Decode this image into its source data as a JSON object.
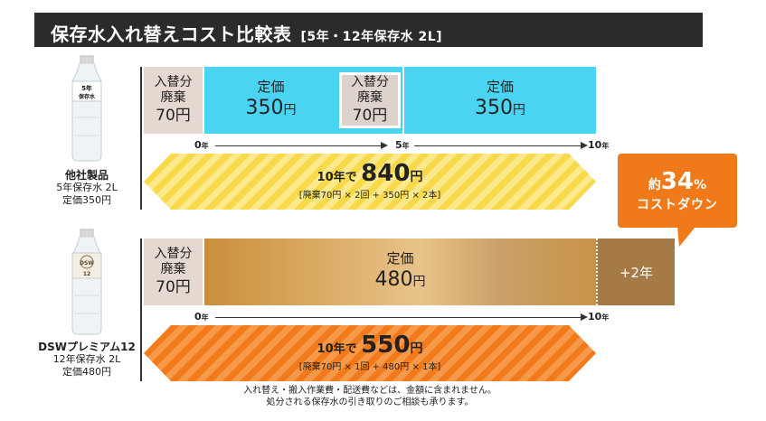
{
  "title": {
    "main": "保存水入れ替えコスト比較表",
    "sub": "[5年・12年保存水 2L]"
  },
  "bottle_labels": {
    "other": "5年 保存水",
    "dsw": "DSW 12"
  },
  "product_other": {
    "name": "他社製品",
    "desc": "5年保存水 2L",
    "price": "定価350円"
  },
  "product_dsw": {
    "name": "DSWプレミアム12",
    "desc": "12年保存水 2L",
    "price": "定価480円"
  },
  "row_other": {
    "dispose1_small": "入替分",
    "dispose1_small2": "廃棄",
    "dispose1_value": "70円",
    "price1_label": "定価",
    "price1_value": "350",
    "price1_unit": "円",
    "dispose2_small": "入替分",
    "dispose2_small2": "廃棄",
    "dispose2_value": "70円",
    "price2_label": "定価",
    "price2_value": "350",
    "price2_unit": "円"
  },
  "timeline_other": {
    "t0": "0",
    "t5": "5",
    "t10": "10",
    "unit": "年"
  },
  "banner_other": {
    "prefix": "10年で",
    "amount": "840",
    "unit": "円",
    "detail": "[廃棄70円 × 2回 + 350円 × 2本]"
  },
  "row_dsw": {
    "dispose_small": "入替分",
    "dispose_small2": "廃棄",
    "dispose_value": "70円",
    "price_label": "定価",
    "price_value": "480",
    "price_unit": "円",
    "extra": "+2年"
  },
  "timeline_dsw": {
    "t0": "0",
    "t10": "10",
    "unit": "年"
  },
  "banner_dsw": {
    "prefix": "10年で",
    "amount": "550",
    "unit": "円",
    "detail": "[廃棄70円 × 1回 + 480円 × 1本]"
  },
  "badge": {
    "prefix": "約",
    "percent": "34",
    "pct_sign": "%",
    "label": "コストダウン"
  },
  "notes": {
    "line1": "入れ替え・搬入作業費・配送費などは、金額に含まれません。",
    "line2": "処分される保存水の引き取りのご相談も承ります。"
  },
  "colors": {
    "title_bg": "#2b2b2b",
    "price_blue": "#4bd4f2",
    "dispose_beige": "#e4d8d1",
    "stripe_yellow": "#f7e061",
    "stripe_orange": "#f37f1e",
    "gold": "#d8ad6a",
    "brown": "#a57a46",
    "badge_orange": "#f07a1a"
  }
}
